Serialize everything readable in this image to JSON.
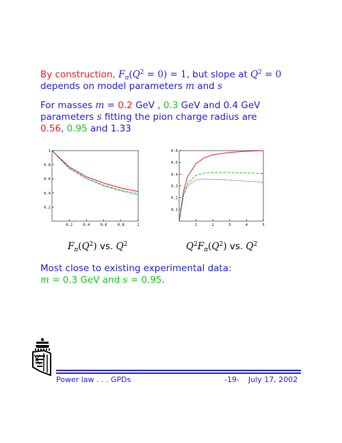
{
  "para1": {
    "line1_prefix": "By construction, ",
    "line1_mid": ", but slope at ",
    "line2": "depends on model parameters ",
    "and": " and "
  },
  "para2": {
    "line1_a": "For masses ",
    "mass1": "0.2",
    "gev_sep": " GeV , ",
    "mass2": "0.3",
    "gev_and": " GeV and 0.4 GeV",
    "line2_a": "parameters ",
    "line2_b": " fitting the pion charge radius are",
    "s1": "0.56",
    "comma": ", ",
    "s2": "0.95",
    "and": " and ",
    "s3": "1.33"
  },
  "para3": {
    "line1": "Most close to existing experimental data:",
    "m_val": "0.3",
    "gev_and": " GeV and ",
    "s_val": "0.95",
    "end": "."
  },
  "captions": {
    "left_vs": "vs.",
    "right_vs": "vs."
  },
  "footer": {
    "left": "Power law . . . GPDs",
    "page": "-19-",
    "date": "July 17, 2002"
  },
  "colors": {
    "text_blue": "#1a1ad0",
    "red": "#e8141c",
    "green": "#10c810",
    "series_blue": "#1010c0"
  },
  "chart_data": [
    {
      "type": "line",
      "xlim": [
        0,
        1
      ],
      "ylim": [
        0,
        1
      ],
      "xticks": [
        "0.2",
        "0.4",
        "0.6",
        "0.8",
        "1"
      ],
      "yticks": [
        "0.2",
        "0.4",
        "0.6",
        "0.8",
        "1"
      ],
      "series": [
        {
          "color": "#e8141c",
          "style": "solid",
          "x": [
            0,
            0.2,
            0.4,
            0.6,
            0.8,
            1.0
          ],
          "values": [
            1.0,
            0.77,
            0.63,
            0.54,
            0.47,
            0.42
          ]
        },
        {
          "color": "#10c810",
          "style": "dashed",
          "x": [
            0,
            0.2,
            0.4,
            0.6,
            0.8,
            1.0
          ],
          "values": [
            1.0,
            0.75,
            0.61,
            0.51,
            0.44,
            0.39
          ]
        },
        {
          "color": "#1010c0",
          "style": "dotted",
          "x": [
            0,
            0.2,
            0.4,
            0.6,
            0.8,
            1.0
          ],
          "values": [
            1.0,
            0.75,
            0.6,
            0.5,
            0.43,
            0.37
          ]
        }
      ]
    },
    {
      "type": "line",
      "xlim": [
        0,
        5
      ],
      "ylim": [
        0,
        0.6
      ],
      "xticks": [
        "1",
        "2",
        "3",
        "4",
        "5"
      ],
      "yticks": [
        "0.1",
        "0.2",
        "0.3",
        "0.4",
        "0.5",
        "0.6"
      ],
      "series": [
        {
          "color": "#e8141c",
          "style": "solid",
          "x": [
            0,
            0.25,
            0.5,
            1,
            1.5,
            2,
            3,
            4,
            5
          ],
          "values": [
            0,
            0.25,
            0.38,
            0.49,
            0.54,
            0.565,
            0.585,
            0.595,
            0.6
          ]
        },
        {
          "color": "#10c810",
          "style": "dashed",
          "x": [
            0,
            0.25,
            0.5,
            1,
            1.5,
            2,
            3,
            4,
            5
          ],
          "values": [
            0,
            0.22,
            0.32,
            0.39,
            0.41,
            0.415,
            0.415,
            0.41,
            0.405
          ]
        },
        {
          "color": "#1010c0",
          "style": "dotted",
          "x": [
            0,
            0.25,
            0.5,
            1,
            1.5,
            2,
            3,
            4,
            5
          ],
          "values": [
            0,
            0.22,
            0.3,
            0.35,
            0.36,
            0.355,
            0.35,
            0.34,
            0.33
          ]
        }
      ]
    }
  ]
}
